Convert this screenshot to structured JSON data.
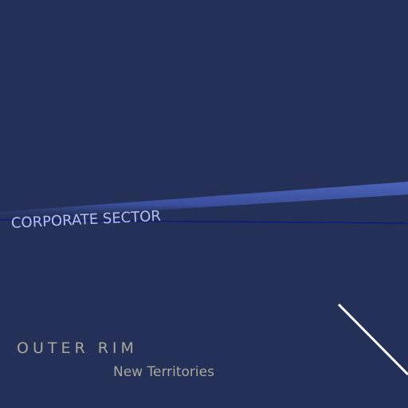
{
  "map": {
    "background_color": "#243058",
    "regions": {
      "corporate_sector": {
        "label": "CORPORATE SECTOR",
        "color": "#b3bff5"
      },
      "outer_rim": {
        "label": "OUTER RIM",
        "color": "#a9a89d"
      },
      "new_territories": {
        "label": "New Territories",
        "color": "#a9a89d"
      }
    },
    "route_colors": {
      "corporate_band": "#3e54a3",
      "corporate_boundary": "#0d1a7a",
      "hyperlane": "#ffffff"
    }
  }
}
